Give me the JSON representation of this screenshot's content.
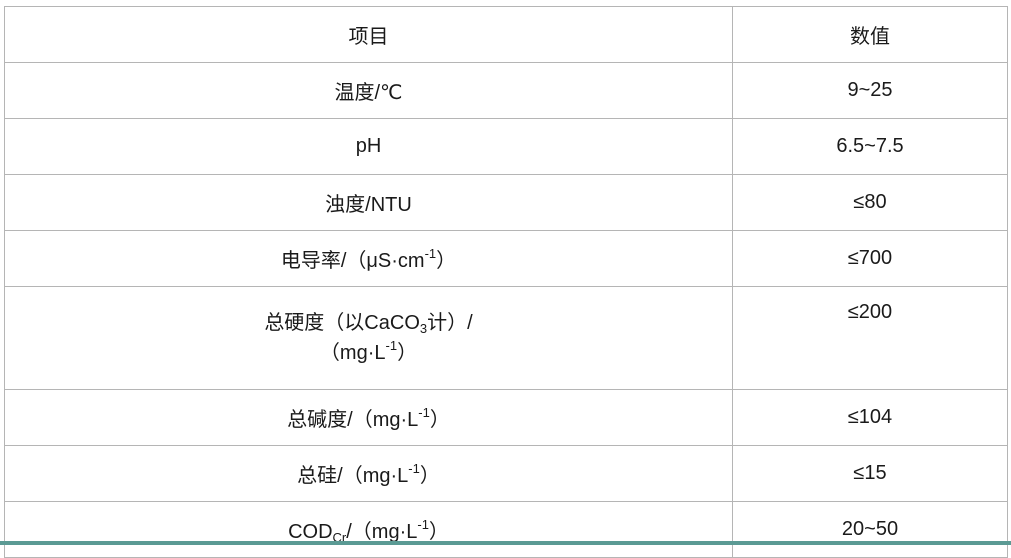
{
  "table": {
    "headers": [
      "项目",
      "数值"
    ],
    "rows": [
      {
        "label": {
          "pre": "温度/℃"
        },
        "value": "9~25"
      },
      {
        "label": {
          "pre": "pH"
        },
        "value": "6.5~7.5"
      },
      {
        "label": {
          "pre": "浊度/NTU"
        },
        "value": "≤80"
      },
      {
        "label": {
          "pre": "电导率/（μS·cm",
          "sup": "-1",
          "post": "）"
        },
        "value": "≤700"
      },
      {
        "label": {
          "pre": "总硬度（以CaCO",
          "sub": "3",
          "mid": "计）/",
          "line2pre": "（mg·L",
          "sup": "-1",
          "post": "）"
        },
        "value": "≤200"
      },
      {
        "label": {
          "pre": "总碱度/（mg·L",
          "sup": "-1",
          "post": "）"
        },
        "value": "≤104"
      },
      {
        "label": {
          "pre": "总硅/（mg·L",
          "sup": "-1",
          "post": "）"
        },
        "value": "≤15"
      },
      {
        "label": {
          "pre": "COD",
          "sub": "Cr",
          "mid": "/（mg·L",
          "sup": "-1",
          "post": "）"
        },
        "value": "20~50"
      }
    ]
  },
  "colors": {
    "border": "#b5b5b5",
    "bottom_bar": "#5b9a94"
  }
}
